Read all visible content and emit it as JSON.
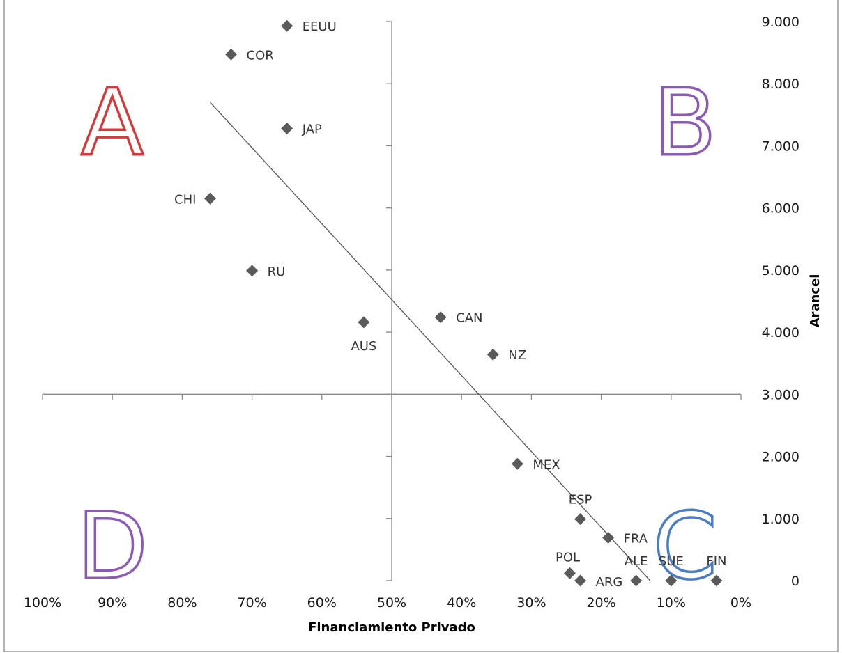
{
  "chart_data": {
    "type": "scatter",
    "title": "",
    "xlabel": "Financiamiento Privado",
    "ylabel": "Arancel",
    "x_axis": {
      "direction": "reversed",
      "range": [
        0,
        100
      ],
      "tick_labels": [
        "100%",
        "90%",
        "80%",
        "70%",
        "60%",
        "50%",
        "40%",
        "30%",
        "20%",
        "10%",
        "0%"
      ]
    },
    "y_axis": {
      "position": "right",
      "range": [
        0,
        9000
      ],
      "tick_labels": [
        "0",
        "1.000",
        "2.000",
        "3.000",
        "4.000",
        "5.000",
        "6.000",
        "7.000",
        "8.000",
        "9.000"
      ]
    },
    "crosshair": {
      "x": 50,
      "y": 3000
    },
    "marker": {
      "shape": "diamond",
      "color": "#5a5a5a"
    },
    "points": [
      {
        "label": "EEUU",
        "x": 65,
        "y": 8930
      },
      {
        "label": "COR",
        "x": 73,
        "y": 8470
      },
      {
        "label": "JAP",
        "x": 65,
        "y": 7280
      },
      {
        "label": "CHI",
        "x": 76,
        "y": 6150
      },
      {
        "label": "RU",
        "x": 70,
        "y": 4990
      },
      {
        "label": "AUS",
        "x": 54,
        "y": 4160
      },
      {
        "label": "CAN",
        "x": 43,
        "y": 4240
      },
      {
        "label": "NZ",
        "x": 35.5,
        "y": 3640
      },
      {
        "label": "MEX",
        "x": 32,
        "y": 1880
      },
      {
        "label": "ESP",
        "x": 23,
        "y": 990
      },
      {
        "label": "FRA",
        "x": 19,
        "y": 690
      },
      {
        "label": "POL",
        "x": 24.5,
        "y": 120
      },
      {
        "label": "ARG",
        "x": 23,
        "y": 0
      },
      {
        "label": "ALE",
        "x": 15,
        "y": 0
      },
      {
        "label": "SUE",
        "x": 10,
        "y": 0
      },
      {
        "label": "FIN",
        "x": 3.5,
        "y": 0
      }
    ],
    "trendline": {
      "from": {
        "x": 76,
        "y": 7700
      },
      "to": {
        "x": 13,
        "y": 0
      },
      "color": "#555555"
    },
    "quadrants": [
      {
        "letter": "A",
        "color": "#d13b3b",
        "x": 90,
        "y": 7400
      },
      {
        "letter": "B",
        "color": "#8a5bb0",
        "x": 8,
        "y": 7400
      },
      {
        "letter": "C",
        "color": "#4a7ec2",
        "x": 8,
        "y": 580
      },
      {
        "letter": "D",
        "color": "#8a5bb0",
        "x": 90,
        "y": 580
      }
    ]
  }
}
